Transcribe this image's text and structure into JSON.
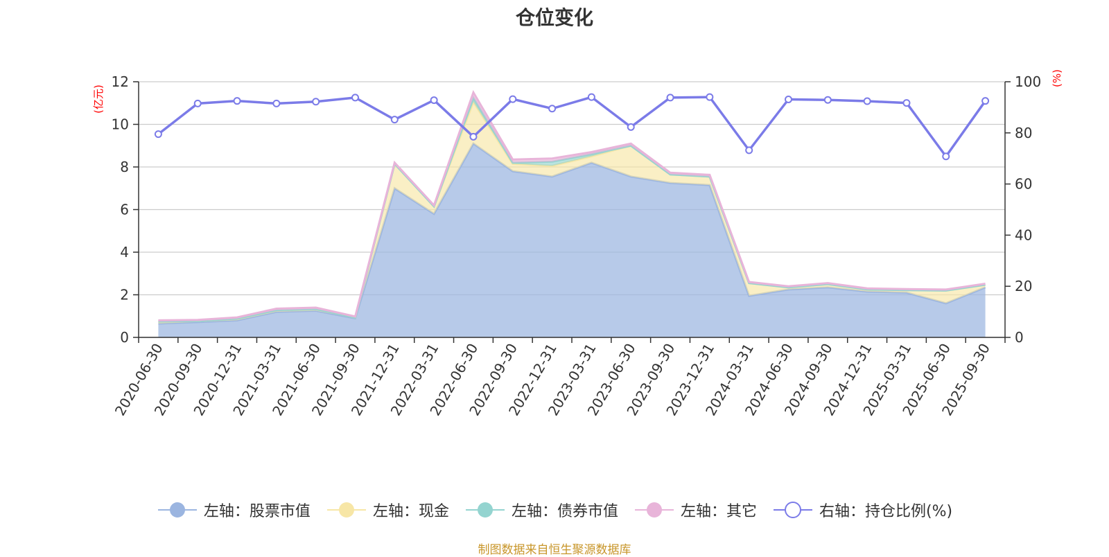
{
  "chart_data": {
    "type": "area",
    "title": "仓位变化",
    "left_axis_unit": "(亿元)",
    "right_axis_unit": "(%)",
    "categories": [
      "2020-06-30",
      "2020-09-30",
      "2020-12-31",
      "2021-03-31",
      "2021-06-30",
      "2021-09-30",
      "2021-12-31",
      "2022-03-31",
      "2022-06-30",
      "2022-09-30",
      "2022-12-31",
      "2023-03-31",
      "2023-06-30",
      "2023-09-30",
      "2023-12-31",
      "2024-03-31",
      "2024-06-30",
      "2024-09-30",
      "2024-12-31",
      "2025-03-31",
      "2025-06-30",
      "2025-09-30"
    ],
    "ylim_left": [
      0,
      12
    ],
    "yticks_left": [
      0,
      2,
      4,
      6,
      8,
      10,
      12
    ],
    "ylim_right": [
      0,
      100
    ],
    "yticks_right": [
      0,
      20,
      40,
      60,
      80,
      100
    ],
    "grid": true,
    "legend_position": "bottom",
    "series": [
      {
        "name": "左轴：股票市值",
        "axis": "left",
        "stacked": true,
        "color": "#9bb5e0",
        "values": [
          0.65,
          0.72,
          0.8,
          1.2,
          1.25,
          0.9,
          7.0,
          5.8,
          9.1,
          7.8,
          7.55,
          8.2,
          7.55,
          7.25,
          7.15,
          1.95,
          2.25,
          2.35,
          2.15,
          2.1,
          1.6,
          2.35
        ]
      },
      {
        "name": "左轴：现金",
        "axis": "left",
        "stacked": true,
        "color": "#f7e6a6",
        "values": [
          0.1,
          0.05,
          0.08,
          0.08,
          0.08,
          0.03,
          1.15,
          0.35,
          1.95,
          0.35,
          0.5,
          0.3,
          1.45,
          0.4,
          0.4,
          0.6,
          0.1,
          0.15,
          0.1,
          0.12,
          0.6,
          0.12
        ]
      },
      {
        "name": "左轴：债券市值",
        "axis": "left",
        "stacked": true,
        "color": "#94d4d0",
        "values": [
          0,
          0,
          0,
          0,
          0,
          0,
          0,
          0,
          0.2,
          0.05,
          0.2,
          0.1,
          0,
          0,
          0,
          0,
          0,
          0,
          0,
          0,
          0,
          0
        ]
      },
      {
        "name": "左轴：其它",
        "axis": "left",
        "stacked": true,
        "color": "#e8b4d9",
        "values": [
          0.05,
          0.05,
          0.06,
          0.07,
          0.07,
          0.05,
          0.05,
          0.05,
          0.25,
          0.15,
          0.15,
          0.1,
          0.1,
          0.08,
          0.08,
          0.05,
          0.05,
          0.05,
          0.05,
          0.05,
          0.05,
          0.05
        ]
      },
      {
        "name": "右轴：持仓比例(%)",
        "axis": "right",
        "type": "line",
        "color": "#7b7be8",
        "values": [
          79.5,
          91.5,
          92.5,
          91.5,
          92.2,
          93.8,
          85.2,
          92.8,
          78.5,
          93.2,
          89.5,
          94.0,
          82.3,
          93.8,
          94.0,
          73.2,
          93.1,
          92.9,
          92.4,
          91.7,
          70.8,
          92.5
        ]
      }
    ]
  },
  "footer": {
    "source": "制图数据来自恒生聚源数据库"
  }
}
